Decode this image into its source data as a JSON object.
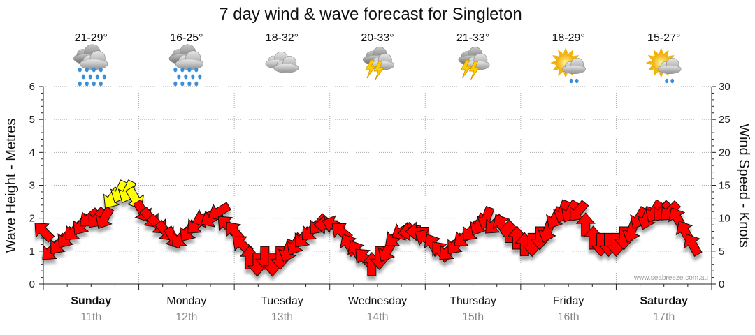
{
  "chart_data": {
    "type": "line",
    "title": "7 day wind & wave forecast for Singleton",
    "y_left_label": "Wave Height - Metres",
    "y_right_label": "Wind Speed - Knots",
    "y_left_ticks": [
      "0",
      "1",
      "2",
      "3",
      "4",
      "5",
      "6"
    ],
    "y_right_ticks": [
      "0",
      "5",
      "10",
      "15",
      "20",
      "25",
      "30"
    ],
    "y_left_range": [
      0,
      6
    ],
    "y_right_range": [
      0,
      30
    ],
    "grid": true,
    "watermark": "www.seabreeze.com.au",
    "days": [
      {
        "day": "Sunday",
        "date": "11th",
        "temps": "21-29°",
        "icon": "rain-icon",
        "bold": true
      },
      {
        "day": "Monday",
        "date": "12th",
        "temps": "16-25°",
        "icon": "rain-icon",
        "bold": false
      },
      {
        "day": "Tuesday",
        "date": "13th",
        "temps": "18-32°",
        "icon": "cloud-icon",
        "bold": false
      },
      {
        "day": "Wednesday",
        "date": "14th",
        "temps": "20-33°",
        "icon": "thunderstorm-icon",
        "bold": false
      },
      {
        "day": "Thursday",
        "date": "15th",
        "temps": "21-33°",
        "icon": "thunderstorm-icon",
        "bold": false
      },
      {
        "day": "Friday",
        "date": "16th",
        "temps": "18-29°",
        "icon": "sun-cloud-drizzle-icon",
        "bold": false
      },
      {
        "day": "Saturday",
        "date": "17th",
        "temps": "15-27°",
        "icon": "sun-cloud-drizzle-icon",
        "bold": true
      }
    ],
    "series": [
      {
        "values": [
          {
            "t": 0.0,
            "knots": 8,
            "dir": 135
          },
          {
            "t": 0.08,
            "knots": 5,
            "dir": 45
          },
          {
            "t": 0.16,
            "knots": 6,
            "dir": 40
          },
          {
            "t": 0.24,
            "knots": 7,
            "dir": 35
          },
          {
            "t": 0.32,
            "knots": 8,
            "dir": 45
          },
          {
            "t": 0.4,
            "knots": 9,
            "dir": 35
          },
          {
            "t": 0.48,
            "knots": 10,
            "dir": 50
          },
          {
            "t": 0.56,
            "knots": 10,
            "dir": 40
          },
          {
            "t": 0.64,
            "knots": 10,
            "dir": 30
          },
          {
            "t": 0.72,
            "knots": 13,
            "dir": 35
          },
          {
            "t": 0.8,
            "knots": 14,
            "dir": 25
          },
          {
            "t": 0.88,
            "knots": 14,
            "dir": 25
          },
          {
            "t": 0.96,
            "knots": 13,
            "dir": 330
          },
          {
            "t": 1.04,
            "knots": 11,
            "dir": 330
          },
          {
            "t": 1.12,
            "knots": 10,
            "dir": 320
          },
          {
            "t": 1.2,
            "knots": 9,
            "dir": 315
          },
          {
            "t": 1.28,
            "knots": 8,
            "dir": 320
          },
          {
            "t": 1.36,
            "knots": 7,
            "dir": 330
          },
          {
            "t": 1.44,
            "knots": 7,
            "dir": 45
          },
          {
            "t": 1.52,
            "knots": 8,
            "dir": 35
          },
          {
            "t": 1.6,
            "knots": 9,
            "dir": 45
          },
          {
            "t": 1.68,
            "knots": 10,
            "dir": 70
          },
          {
            "t": 1.76,
            "knots": 10,
            "dir": 60
          },
          {
            "t": 1.84,
            "knots": 11,
            "dir": 60
          },
          {
            "t": 1.92,
            "knots": 9,
            "dir": 135
          },
          {
            "t": 2.0,
            "knots": 8,
            "dir": 140
          },
          {
            "t": 2.08,
            "knots": 6,
            "dir": 130
          },
          {
            "t": 2.16,
            "knots": 4,
            "dir": 180
          },
          {
            "t": 2.24,
            "knots": 3,
            "dir": 0
          },
          {
            "t": 2.32,
            "knots": 4,
            "dir": 0
          },
          {
            "t": 2.4,
            "knots": 3,
            "dir": 0
          },
          {
            "t": 2.48,
            "knots": 4,
            "dir": 0
          },
          {
            "t": 2.56,
            "knots": 5,
            "dir": 20
          },
          {
            "t": 2.64,
            "knots": 6,
            "dir": 30
          },
          {
            "t": 2.72,
            "knots": 7,
            "dir": 40
          },
          {
            "t": 2.8,
            "knots": 8,
            "dir": 45
          },
          {
            "t": 2.88,
            "knots": 9,
            "dir": 40
          },
          {
            "t": 2.96,
            "knots": 9,
            "dir": 90
          },
          {
            "t": 3.04,
            "knots": 9,
            "dir": 110
          },
          {
            "t": 3.12,
            "knots": 8,
            "dir": 130
          },
          {
            "t": 3.2,
            "knots": 6,
            "dir": 150
          },
          {
            "t": 3.28,
            "knots": 5,
            "dir": 150
          },
          {
            "t": 3.36,
            "knots": 4,
            "dir": 135
          },
          {
            "t": 3.44,
            "knots": 3,
            "dir": 180
          },
          {
            "t": 3.52,
            "knots": 4,
            "dir": 0
          },
          {
            "t": 3.6,
            "knots": 5,
            "dir": 30
          },
          {
            "t": 3.68,
            "knots": 7,
            "dir": 50
          },
          {
            "t": 3.76,
            "knots": 8,
            "dir": 60
          },
          {
            "t": 3.84,
            "knots": 8,
            "dir": 80
          },
          {
            "t": 3.92,
            "knots": 8,
            "dir": 90
          },
          {
            "t": 4.0,
            "knots": 7,
            "dir": 120
          },
          {
            "t": 4.08,
            "knots": 6,
            "dir": 150
          },
          {
            "t": 4.16,
            "knots": 5,
            "dir": 140
          },
          {
            "t": 4.24,
            "knots": 5,
            "dir": 45
          },
          {
            "t": 4.32,
            "knots": 6,
            "dir": 40
          },
          {
            "t": 4.4,
            "knots": 7,
            "dir": 50
          },
          {
            "t": 4.48,
            "knots": 8,
            "dir": 40
          },
          {
            "t": 4.56,
            "knots": 9,
            "dir": 30
          },
          {
            "t": 4.64,
            "knots": 10,
            "dir": 20
          },
          {
            "t": 4.72,
            "knots": 9,
            "dir": 45
          },
          {
            "t": 4.8,
            "knots": 9,
            "dir": 150
          },
          {
            "t": 4.88,
            "knots": 8,
            "dir": 180
          },
          {
            "t": 4.96,
            "knots": 7,
            "dir": 180
          },
          {
            "t": 5.04,
            "knots": 6,
            "dir": 180
          },
          {
            "t": 5.12,
            "knots": 6,
            "dir": 0
          },
          {
            "t": 5.2,
            "knots": 7,
            "dir": 0
          },
          {
            "t": 5.28,
            "knots": 8,
            "dir": 20
          },
          {
            "t": 5.36,
            "knots": 10,
            "dir": 30
          },
          {
            "t": 5.44,
            "knots": 11,
            "dir": 20
          },
          {
            "t": 5.52,
            "knots": 11,
            "dir": 30
          },
          {
            "t": 5.6,
            "knots": 11,
            "dir": 40
          },
          {
            "t": 5.68,
            "knots": 9,
            "dir": 180
          },
          {
            "t": 5.76,
            "knots": 7,
            "dir": 180
          },
          {
            "t": 5.84,
            "knots": 6,
            "dir": 0
          },
          {
            "t": 5.92,
            "knots": 6,
            "dir": 0
          },
          {
            "t": 6.0,
            "knots": 6,
            "dir": 0
          },
          {
            "t": 6.08,
            "knots": 7,
            "dir": 0
          },
          {
            "t": 6.16,
            "knots": 8,
            "dir": 20
          },
          {
            "t": 6.24,
            "knots": 10,
            "dir": 30
          },
          {
            "t": 6.32,
            "knots": 10,
            "dir": 20
          },
          {
            "t": 6.4,
            "knots": 11,
            "dir": 30
          },
          {
            "t": 6.48,
            "knots": 11,
            "dir": 40
          },
          {
            "t": 6.56,
            "knots": 11,
            "dir": 45
          },
          {
            "t": 6.64,
            "knots": 10,
            "dir": 150
          },
          {
            "t": 6.72,
            "knots": 8,
            "dir": 150
          },
          {
            "t": 6.8,
            "knots": 6,
            "dir": 150
          }
        ],
        "color_normal": "#ff0000",
        "color_strong": "#ffff00",
        "strong_threshold_knots": 13
      }
    ]
  }
}
